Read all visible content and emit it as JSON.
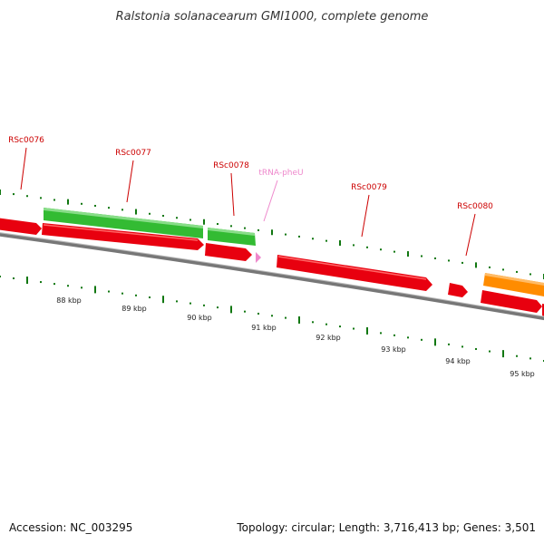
{
  "title": "Ralstonia solanacearum GMI1000, complete genome",
  "footer": {
    "accession": "Accession: NC_003295",
    "summary": "Topology: circular; Length: 3,716,413 bp; Genes: 3,501"
  },
  "colors": {
    "cds_red": "#e8000f",
    "cds_green": "#33bb33",
    "cds_orange": "#ff8c00",
    "trna_pink": "#ee88cc",
    "label_red": "#cc0000",
    "label_pink": "#ee88cc",
    "tick_green": "#117711",
    "backbone": "#777777"
  },
  "ticks": [
    {
      "label": "88 kbp"
    },
    {
      "label": "89 kbp"
    },
    {
      "label": "90 kbp"
    },
    {
      "label": "91 kbp"
    },
    {
      "label": "92 kbp"
    },
    {
      "label": "93 kbp"
    },
    {
      "label": "94 kbp"
    },
    {
      "label": "95 kbp"
    }
  ],
  "gene_labels": [
    {
      "name": "RSc0076",
      "type": "CDS"
    },
    {
      "name": "RSc0077",
      "type": "CDS"
    },
    {
      "name": "RSc0078",
      "type": "CDS"
    },
    {
      "name": "tRNA-pheU",
      "type": "tRNA"
    },
    {
      "name": "RSc0079",
      "type": "CDS"
    },
    {
      "name": "RSc0080",
      "type": "CDS"
    }
  ]
}
